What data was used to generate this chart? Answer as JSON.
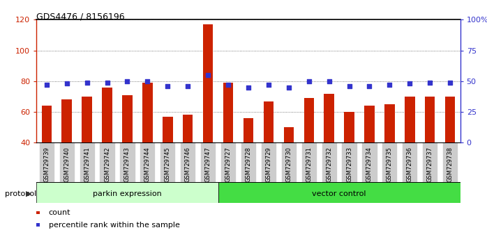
{
  "title": "GDS4476 / 8156196",
  "categories": [
    "GSM729739",
    "GSM729740",
    "GSM729741",
    "GSM729742",
    "GSM729743",
    "GSM729744",
    "GSM729745",
    "GSM729746",
    "GSM729747",
    "GSM729727",
    "GSM729728",
    "GSM729729",
    "GSM729730",
    "GSM729731",
    "GSM729732",
    "GSM729733",
    "GSM729734",
    "GSM729735",
    "GSM729736",
    "GSM729737",
    "GSM729738"
  ],
  "counts": [
    64,
    68,
    70,
    76,
    71,
    79,
    57,
    58,
    117,
    79,
    56,
    67,
    50,
    69,
    72,
    60,
    64,
    65,
    70,
    70,
    70
  ],
  "percentiles": [
    47,
    48,
    49,
    49,
    50,
    50,
    46,
    46,
    55,
    47,
    45,
    47,
    45,
    50,
    50,
    46,
    46,
    47,
    48,
    49,
    49
  ],
  "parkin_count": 9,
  "vector_count": 12,
  "ylim_left": [
    40,
    120
  ],
  "ylim_right": [
    0,
    100
  ],
  "yticks_left": [
    40,
    60,
    80,
    100,
    120
  ],
  "yticks_right": [
    0,
    25,
    50,
    75,
    100
  ],
  "ytick_labels_right": [
    "0",
    "25",
    "50",
    "75",
    "100%"
  ],
  "bar_color": "#cc2200",
  "dot_color": "#3333cc",
  "parkin_label": "parkin expression",
  "vector_label": "vector control",
  "protocol_label": "protocol",
  "legend_count": "count",
  "legend_pct": "percentile rank within the sample",
  "parkin_bg": "#ccffcc",
  "vector_bg": "#44dd44",
  "grid_color": "#555555",
  "tick_bg": "#cccccc"
}
